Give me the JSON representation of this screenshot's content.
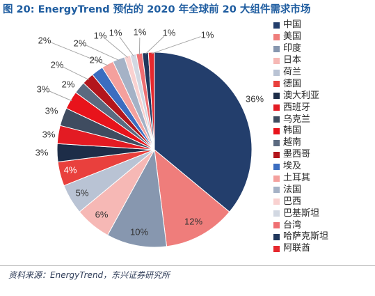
{
  "chart_data": {
    "type": "pie",
    "title": "图 20: EnergyTrend 预估的 2020 年全球前 20 大组件需求市场",
    "categories": [
      "中国",
      "美国",
      "印度",
      "日本",
      "荷兰",
      "德国",
      "澳大利亚",
      "西班牙",
      "乌克兰",
      "韩国",
      "越南",
      "墨西哥",
      "埃及",
      "土耳其",
      "法国",
      "巴西",
      "巴基斯坦",
      "台湾",
      "哈萨克斯坦",
      "阿联酋"
    ],
    "values": [
      36,
      12,
      10,
      6,
      5,
      4,
      3,
      3,
      3,
      3,
      2,
      2,
      2,
      2,
      2,
      1,
      1,
      1,
      1,
      1
    ],
    "data_labels": [
      "36%",
      "12%",
      "10%",
      "6%",
      "5%",
      "4%",
      "3%",
      "3%",
      "3%",
      "3%",
      "2%",
      "2%",
      "2%",
      "2%",
      "2%",
      "1%",
      "1%",
      "1%",
      "1%",
      "1%"
    ],
    "colors": [
      "#233E6C",
      "#EF7D7B",
      "#8797AF",
      "#F6B8B5",
      "#B9C3D4",
      "#E9403D",
      "#1D2D48",
      "#E31B23",
      "#3F4C60",
      "#E8131B",
      "#5B6A80",
      "#B3161C",
      "#3B6DC0",
      "#F4A09D",
      "#A5B2C6",
      "#F9D1D0",
      "#D2D8E2",
      "#EF6F72",
      "#20375C",
      "#E6282E"
    ],
    "legend_position": "right"
  },
  "source": "资料来源：EnergyTrend，东兴证券研究所"
}
